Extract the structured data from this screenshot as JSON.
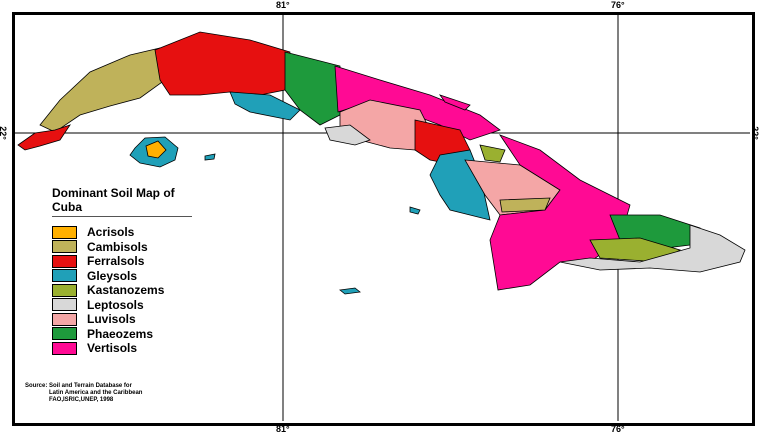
{
  "grid_labels": {
    "lon_west": "81°",
    "lon_east": "76°",
    "lat": "22°"
  },
  "legend": {
    "title": "Dominant Soil Map of Cuba",
    "items": [
      {
        "label": "Acrisols",
        "color": "#ffb000"
      },
      {
        "label": "Cambisols",
        "color": "#bfb25a"
      },
      {
        "label": "Ferralsols",
        "color": "#e61010"
      },
      {
        "label": "Gleysols",
        "color": "#20a0b8"
      },
      {
        "label": "Kastanozems",
        "color": "#9ab030"
      },
      {
        "label": "Leptosols",
        "color": "#d8d8d8"
      },
      {
        "label": "Luvisols",
        "color": "#f4a6a6"
      },
      {
        "label": "Phaeozems",
        "color": "#1e9a3c"
      },
      {
        "label": "Vertisols",
        "color": "#ff0a94"
      }
    ]
  },
  "source": [
    "Source: Soil and Terrain Database for",
    "Latin America and the Caribbean",
    "FAO,ISRIC,UNEP, 1998"
  ]
}
